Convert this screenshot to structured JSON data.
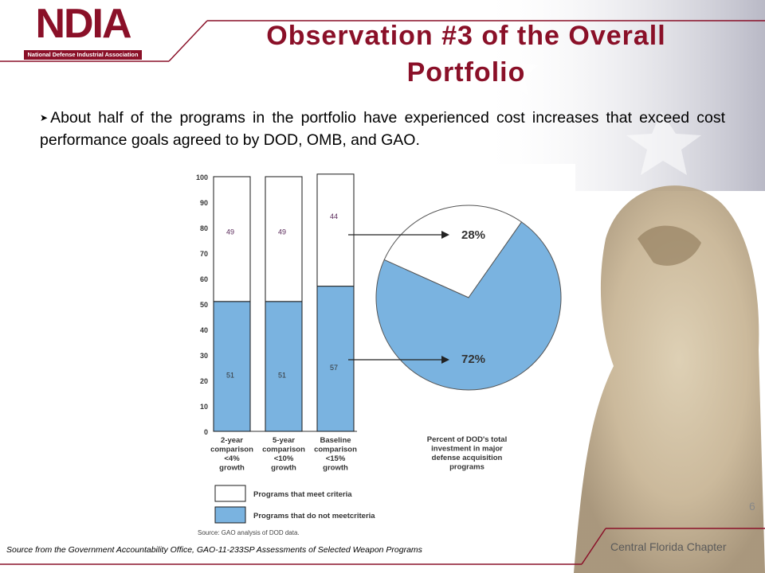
{
  "logo": {
    "word": "NDIA",
    "subtitle": "National Defense Industrial Association"
  },
  "title_line1": "Observation #3 of the Overall",
  "title_line2": "Portfolio",
  "bullet_text": "About half of the programs in the portfolio have experienced cost increases that exceed cost performance goals agreed to by DOD, OMB, and GAO.",
  "footer": {
    "source": "Source from the Government Accountability Office, GAO-11-233SP Assessments of Selected Weapon Programs",
    "chapter": "Central Florida Chapter",
    "page": "6"
  },
  "colors": {
    "brand": "#8a1028",
    "meet": "#ffffff",
    "not_meet": "#7ab3e0",
    "outline": "#1a1a1a"
  },
  "chart_data": [
    {
      "type": "bar",
      "stacked": true,
      "categories": [
        [
          "2-year",
          "comparison",
          "<4%",
          "growth"
        ],
        [
          "5-year",
          "comparison",
          "<10%",
          "growth"
        ],
        [
          "Baseline",
          "comparison",
          "<15%",
          "growth"
        ]
      ],
      "series": [
        {
          "name": "Programs that do not meetcriteria",
          "values": [
            51,
            51,
            57
          ]
        },
        {
          "name": "Programs that meet criteria",
          "values": [
            49,
            49,
            44
          ]
        }
      ],
      "ylim": [
        0,
        100
      ],
      "yticks": [
        0,
        10,
        20,
        30,
        40,
        50,
        60,
        70,
        80,
        90,
        100
      ],
      "source": "Source: GAO analysis of DOD data."
    },
    {
      "type": "pie",
      "labels": [
        "28%",
        "72%"
      ],
      "values": [
        28,
        72
      ],
      "caption": [
        "Percent of DOD's total",
        "investment in major",
        "defense acquisition",
        "programs"
      ]
    }
  ]
}
